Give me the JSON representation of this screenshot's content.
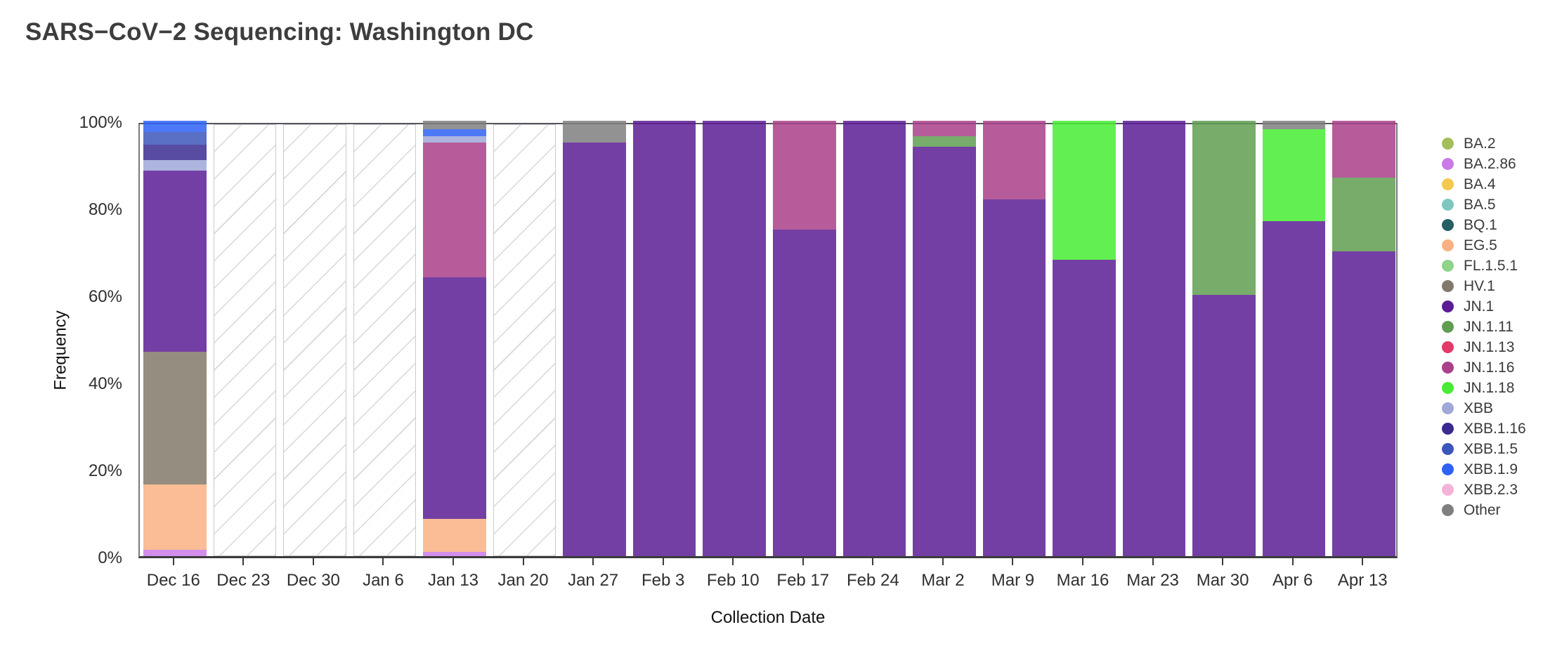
{
  "title": "SARS−CoV−2 Sequencing: Washington DC",
  "colors": {
    "accent_frame": "#55555c",
    "axis_line": "#3b3b3b",
    "hatch_line": "#d6d6dd",
    "bar_opacity": 0.85
  },
  "chart_data": {
    "type": "bar",
    "stacked": true,
    "title": "SARS−CoV−2 Sequencing: Washington DC",
    "xlabel": "Collection Date",
    "ylabel": "Frequency",
    "ylim": [
      0,
      100
    ],
    "y_ticks": [
      "0%",
      "20%",
      "40%",
      "60%",
      "80%",
      "100%"
    ],
    "y_tick_values": [
      0,
      20,
      40,
      60,
      80,
      100
    ],
    "grid": false,
    "legend_position": "right",
    "categories": [
      "Dec 16",
      "Dec 23",
      "Dec 30",
      "Jan 6",
      "Jan 13",
      "Jan 20",
      "Jan 27",
      "Feb 3",
      "Feb 10",
      "Feb 17",
      "Feb 24",
      "Mar 2",
      "Mar 9",
      "Mar 16",
      "Mar 23",
      "Mar 30",
      "Apr 6",
      "Apr 13"
    ],
    "no_data_categories": [
      "Dec 23",
      "Dec 30",
      "Jan 6",
      "Jan 20"
    ],
    "series": [
      {
        "name": "BA.2",
        "color": "#a3bf5c",
        "values": [
          0,
          null,
          null,
          null,
          0,
          null,
          0,
          0,
          0,
          0,
          0,
          0,
          0,
          0,
          0,
          0,
          0,
          0
        ]
      },
      {
        "name": "BA.2.86",
        "color": "#ca7ae6",
        "values": [
          1.5,
          null,
          null,
          null,
          1,
          null,
          0,
          0,
          0,
          0,
          0,
          0,
          0,
          0,
          0,
          0,
          0,
          0
        ]
      },
      {
        "name": "BA.4",
        "color": "#f3c94e",
        "values": [
          0,
          null,
          null,
          null,
          0,
          null,
          0,
          0,
          0,
          0,
          0,
          0,
          0,
          0,
          0,
          0,
          0,
          0
        ]
      },
      {
        "name": "BA.5",
        "color": "#7cc7be",
        "values": [
          0,
          null,
          null,
          null,
          0,
          null,
          0,
          0,
          0,
          0,
          0,
          0,
          0,
          0,
          0,
          0,
          0,
          0
        ]
      },
      {
        "name": "BQ.1",
        "color": "#255f63",
        "values": [
          0,
          null,
          null,
          null,
          0,
          null,
          0,
          0,
          0,
          0,
          0,
          0,
          0,
          0,
          0,
          0,
          0,
          0
        ]
      },
      {
        "name": "EG.5",
        "color": "#f9b183",
        "values": [
          15,
          null,
          null,
          null,
          7.5,
          null,
          0,
          0,
          0,
          0,
          0,
          0,
          0,
          0,
          0,
          0,
          0,
          0
        ]
      },
      {
        "name": "FL.1.5.1",
        "color": "#8ed489",
        "values": [
          0,
          null,
          null,
          null,
          0,
          null,
          0,
          0,
          0,
          0,
          0,
          0,
          0,
          0,
          0,
          0,
          0,
          0
        ]
      },
      {
        "name": "HV.1",
        "color": "#81796a",
        "values": [
          30.5,
          null,
          null,
          null,
          0,
          null,
          0,
          0,
          0,
          0,
          0,
          0,
          0,
          0,
          0,
          0,
          0,
          0
        ]
      },
      {
        "name": "JN.1",
        "color": "#5c1d94",
        "values": [
          41.5,
          null,
          null,
          null,
          55.5,
          null,
          95,
          100,
          100,
          75,
          100,
          94,
          82,
          68,
          100,
          60,
          77,
          70
        ]
      },
      {
        "name": "JN.1.11",
        "color": "#5f9e51",
        "values": [
          0,
          null,
          null,
          null,
          0,
          null,
          0,
          0,
          0,
          0,
          0,
          2.5,
          0,
          0,
          0,
          40,
          0,
          17
        ]
      },
      {
        "name": "JN.1.13",
        "color": "#e23a68",
        "values": [
          0,
          null,
          null,
          null,
          0,
          null,
          0,
          0,
          0,
          0,
          0,
          0,
          0,
          0,
          0,
          0,
          0,
          0
        ]
      },
      {
        "name": "JN.1.16",
        "color": "#aa3f8a",
        "values": [
          0,
          null,
          null,
          null,
          31,
          null,
          0,
          0,
          0,
          25,
          0,
          3.5,
          18,
          0,
          0,
          0,
          0,
          13
        ]
      },
      {
        "name": "JN.1.18",
        "color": "#47ec34",
        "values": [
          0,
          null,
          null,
          null,
          0,
          null,
          0,
          0,
          0,
          0,
          0,
          0,
          0,
          32,
          0,
          0,
          21,
          0
        ]
      },
      {
        "name": "XBB",
        "color": "#9fa8d8",
        "values": [
          2.5,
          null,
          null,
          null,
          1.5,
          null,
          0,
          0,
          0,
          0,
          0,
          0,
          0,
          0,
          0,
          0,
          0,
          0
        ]
      },
      {
        "name": "XBB.1.16",
        "color": "#3a2b92",
        "values": [
          3.5,
          null,
          null,
          null,
          0,
          null,
          0,
          0,
          0,
          0,
          0,
          0,
          0,
          0,
          0,
          0,
          0,
          0
        ]
      },
      {
        "name": "XBB.1.5",
        "color": "#3c57bb",
        "values": [
          3,
          null,
          null,
          null,
          0,
          null,
          0,
          0,
          0,
          0,
          0,
          0,
          0,
          0,
          0,
          0,
          0,
          0
        ]
      },
      {
        "name": "XBB.1.9",
        "color": "#2f62f4",
        "values": [
          2.5,
          null,
          null,
          null,
          1.5,
          null,
          0,
          0,
          0,
          0,
          0,
          0,
          0,
          0,
          0,
          0,
          0,
          0
        ]
      },
      {
        "name": "XBB.2.3",
        "color": "#f4b3d6",
        "values": [
          0,
          null,
          null,
          null,
          0,
          null,
          0,
          0,
          0,
          0,
          0,
          0,
          0,
          0,
          0,
          0,
          0,
          0
        ]
      },
      {
        "name": "Other",
        "color": "#7f7f7f",
        "values": [
          0,
          null,
          null,
          null,
          2,
          null,
          5,
          0,
          0,
          0,
          0,
          0,
          0,
          0,
          0,
          0,
          2,
          0
        ]
      }
    ],
    "legend": [
      "BA.2",
      "BA.2.86",
      "BA.4",
      "BA.5",
      "BQ.1",
      "EG.5",
      "FL.1.5.1",
      "HV.1",
      "JN.1",
      "JN.1.11",
      "JN.1.13",
      "JN.1.16",
      "JN.1.18",
      "XBB",
      "XBB.1.16",
      "XBB.1.5",
      "XBB.1.9",
      "XBB.2.3",
      "Other"
    ]
  }
}
